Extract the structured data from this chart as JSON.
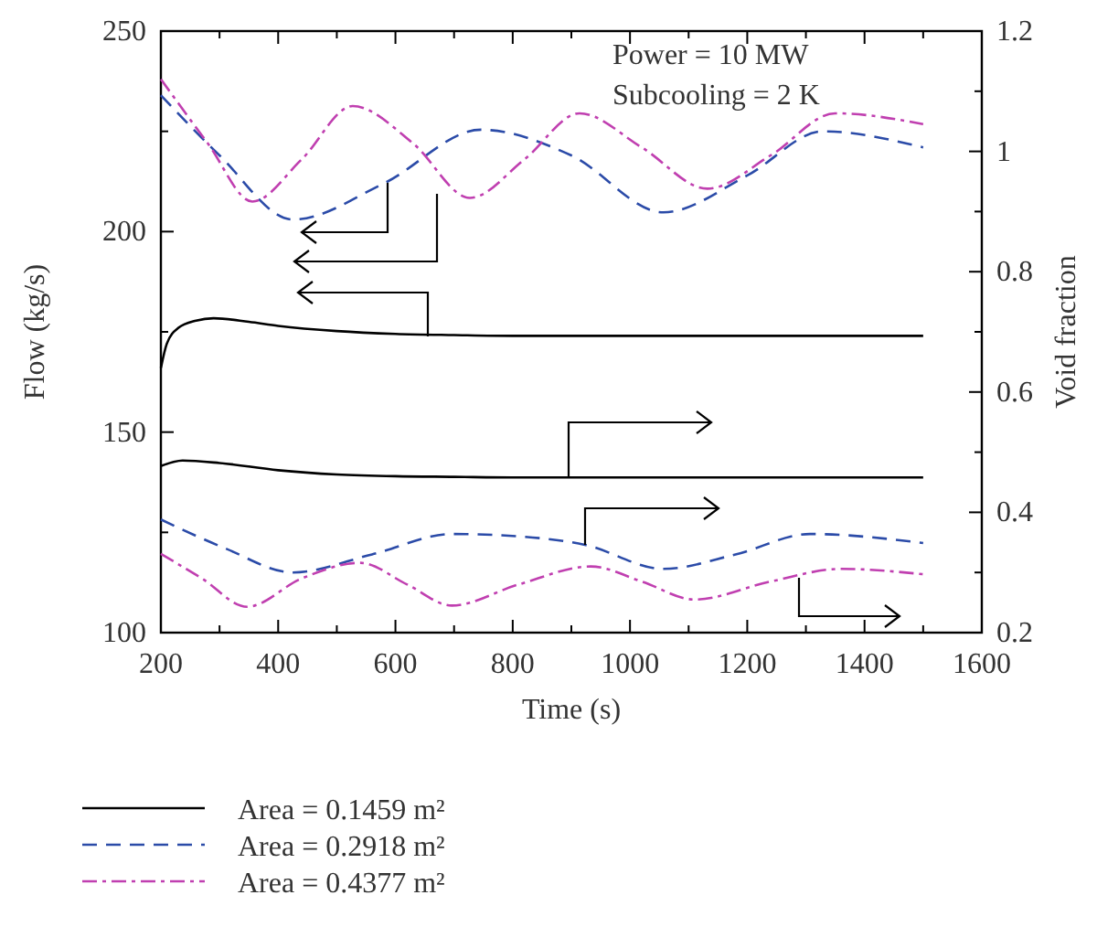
{
  "chart_data": {
    "type": "line",
    "xlabel": "Time (s)",
    "ylabel": "Flow (kg/s)",
    "y2label": "Void fraction",
    "annotations": [
      "Power = 10 MW",
      "Subcooling = 2 K"
    ],
    "xlim": [
      200,
      1600
    ],
    "xticks": [
      200,
      {
        "value": 300,
        "label": null
      },
      400,
      {
        "value": 500,
        "label": null
      },
      600,
      {
        "value": 700,
        "label": null
      },
      800,
      {
        "value": 900,
        "label": null
      },
      1000,
      {
        "value": 1100,
        "label": null
      },
      1200,
      {
        "value": 1300,
        "label": null
      },
      1400,
      {
        "value": 1500,
        "label": null
      },
      1600
    ],
    "ylim": [
      100,
      250
    ],
    "yticks": [
      100,
      {
        "value": 125,
        "label": null
      },
      150,
      {
        "value": 175,
        "label": null
      },
      200,
      {
        "value": 225,
        "label": null
      },
      250
    ],
    "y2lim": [
      0.2,
      1.2
    ],
    "y2ticks": [
      0.2,
      {
        "value": 0.3,
        "label": null
      },
      0.4,
      {
        "value": 0.5,
        "label": null
      },
      0.6,
      {
        "value": 0.7,
        "label": null
      },
      0.8,
      {
        "value": 0.9,
        "label": null
      },
      {
        "value": 1,
        "label": "1"
      },
      {
        "value": 1.1,
        "label": null
      },
      1.2
    ],
    "grid": false,
    "legend": "bottom",
    "series": [
      {
        "name": "Area = 0.1459 m²",
        "color": "#000000",
        "line_style": "solid",
        "x": [
          200,
          210,
          230,
          260,
          290,
          350,
          400,
          500,
          600,
          700,
          800,
          1000,
          1200,
          1500
        ],
        "values": [
          166,
          172,
          176,
          177.8,
          178.4,
          177.5,
          176.5,
          175.2,
          174.5,
          174.2,
          174,
          174,
          174,
          174
        ]
      },
      {
        "name": "Area = 0.2918 m²",
        "color": "#2b4ba8",
        "line_style": "dashed",
        "x": [
          200,
          300,
          425,
          580,
          746,
          900,
          1057,
          1200,
          1329,
          1500
        ],
        "values": [
          234,
          219,
          203,
          212,
          225.4,
          219,
          204.8,
          214,
          225,
          221
        ]
      },
      {
        "name": "Area = 0.4377 m²",
        "color": "#c03fb0",
        "line_style": "dashdot",
        "x": [
          200,
          280,
          356,
          440,
          527,
          630,
          727,
          820,
          914,
          1020,
          1132,
          1240,
          1350,
          1500
        ],
        "values": [
          238,
          222,
          207.5,
          218,
          231.3,
          222,
          208.4,
          218,
          229.5,
          221,
          210.7,
          219,
          229.5,
          226.8
        ]
      },
      {
        "axis": "y2",
        "color": "#000000",
        "line_style": "solid",
        "x": [
          200,
          237,
          300,
          400,
          500,
          600,
          700,
          800,
          1000,
          1200,
          1500
        ],
        "values": [
          0.477,
          0.486,
          0.482,
          0.47,
          0.463,
          0.46,
          0.459,
          0.458,
          0.458,
          0.458,
          0.458
        ]
      },
      {
        "axis": "y2",
        "color": "#2b4ba8",
        "line_style": "dashed",
        "x": [
          200,
          310,
          425,
          560,
          696,
          810,
          923,
          1057,
          1180,
          1307,
          1500
        ],
        "values": [
          0.388,
          0.34,
          0.3,
          0.33,
          0.364,
          0.36,
          0.346,
          0.306,
          0.33,
          0.364,
          0.349
        ]
      },
      {
        "axis": "y2",
        "color": "#c03fb0",
        "line_style": "dashdot",
        "x": [
          200,
          270,
          347,
          440,
          540,
          620,
          696,
          810,
          933,
          1020,
          1110,
          1240,
          1360,
          1500
        ],
        "values": [
          0.331,
          0.29,
          0.243,
          0.29,
          0.316,
          0.28,
          0.245,
          0.28,
          0.31,
          0.285,
          0.255,
          0.285,
          0.306,
          0.297
        ]
      }
    ]
  }
}
